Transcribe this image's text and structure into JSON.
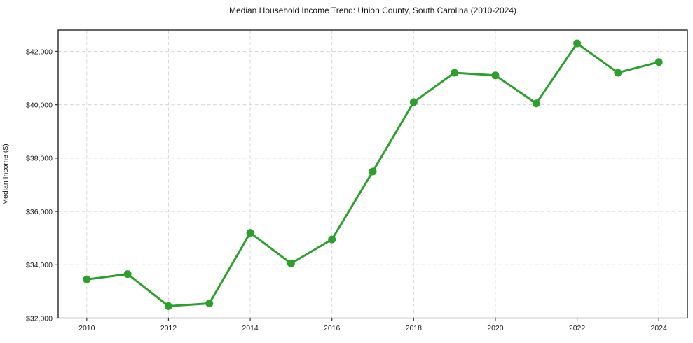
{
  "chart_data": {
    "type": "line",
    "title": "Median Household Income Trend: Union County, South Carolina (2010-2024)",
    "xlabel": "",
    "ylabel": "Median Income ($)",
    "x": [
      2010,
      2011,
      2012,
      2013,
      2014,
      2015,
      2016,
      2017,
      2018,
      2019,
      2020,
      2021,
      2022,
      2023,
      2024
    ],
    "series": [
      {
        "name": "Median Household Income",
        "values": [
          33450,
          33650,
          32450,
          32550,
          35200,
          34050,
          34950,
          37500,
          40100,
          41200,
          41100,
          40050,
          42300,
          41200,
          41600
        ],
        "color": "#2ca02c",
        "marker": "circle",
        "line_width": 3,
        "marker_radius": 5.5
      }
    ],
    "xlim": [
      2009.3,
      2024.7
    ],
    "ylim": [
      32000,
      42800
    ],
    "xticks": [
      2010,
      2012,
      2014,
      2016,
      2018,
      2020,
      2022,
      2024
    ],
    "xtick_labels": [
      "2010",
      "2012",
      "2014",
      "2016",
      "2018",
      "2020",
      "2022",
      "2024"
    ],
    "yticks": [
      32000,
      34000,
      36000,
      38000,
      40000,
      42000
    ],
    "ytick_labels": [
      "$32,000",
      "$34,000",
      "$36,000",
      "$38,000",
      "$40,000",
      "$42,000"
    ],
    "grid": true,
    "grid_style": "dashed",
    "grid_color": "#d8d8d8",
    "axis_color": "#000000",
    "tick_color": "#333333",
    "background": "#ffffff",
    "legend": "none"
  }
}
